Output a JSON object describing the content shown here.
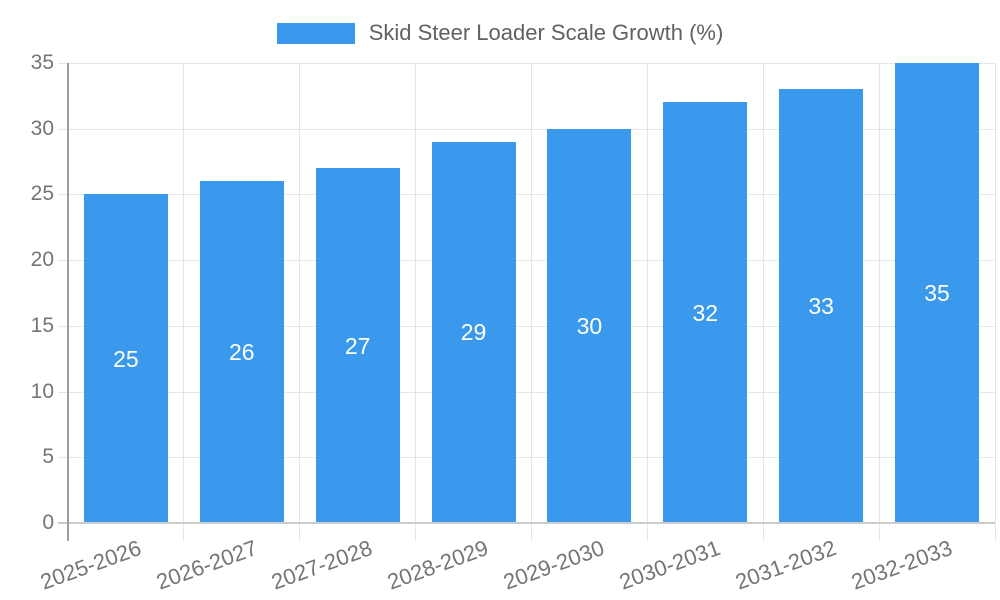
{
  "legend": {
    "label": "Skid Steer Loader Scale Growth (%)"
  },
  "chart_data": {
    "type": "bar",
    "title": "",
    "legend": [
      "Skid Steer Loader Scale Growth (%)"
    ],
    "legend_position": "top",
    "categories": [
      "2025-2026",
      "2026-2027",
      "2027-2028",
      "2028-2029",
      "2029-2030",
      "2030-2031",
      "2031-2032",
      "2032-2033"
    ],
    "values": [
      25,
      26,
      27,
      29,
      30,
      32,
      33,
      35
    ],
    "value_labels": [
      "25",
      "26",
      "27",
      "29",
      "30",
      "32",
      "33",
      "35"
    ],
    "value_label_position": "inside-center",
    "xlabel": "",
    "ylabel": "",
    "ylim": [
      0,
      35
    ],
    "yticks": [
      0,
      5,
      10,
      15,
      20,
      25,
      30,
      35
    ],
    "grid": true
  },
  "colors": {
    "bar": "#3A99EC",
    "value_label": "#FFFFFF",
    "grid_line": "#E6E6E6",
    "y_axis_line": "#9E9E9E",
    "x_axis_line": "#CCCCCC",
    "tick_text": "#757575",
    "legend_text": "#616161",
    "background": "#FFFFFF"
  }
}
